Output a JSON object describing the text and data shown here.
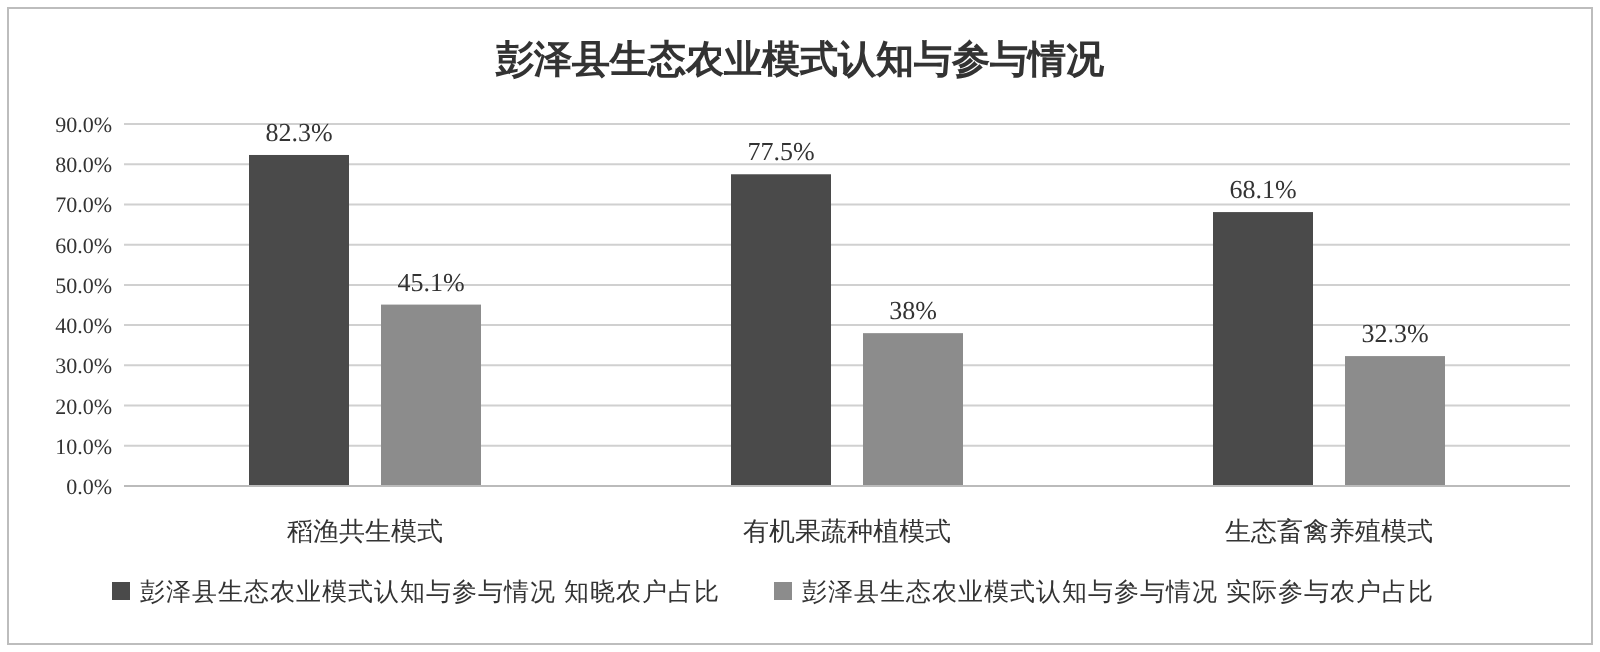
{
  "chart_data": {
    "type": "bar",
    "title": "彭泽县生态农业模式认知与参与情况",
    "categories": [
      "稻渔共生模式",
      "有机果蔬种植模式",
      "生态畜禽养殖模式"
    ],
    "series": [
      {
        "name": "彭泽县生态农业模式认知与参与情况 知晓农户占比",
        "color": "#4a4a4a",
        "values": [
          82.3,
          77.5,
          68.1
        ],
        "value_labels": [
          "82.3%",
          "77.5%",
          "68.1%"
        ]
      },
      {
        "name": "彭泽县生态农业模式认知与参与情况 实际参与农户占比",
        "color": "#8c8c8c",
        "values": [
          45.1,
          38,
          32.3
        ],
        "value_labels": [
          "45.1%",
          "38%",
          "32.3%"
        ]
      }
    ],
    "ylim": [
      0,
      90
    ],
    "yticks": [
      {
        "value": 0,
        "label": "0.0%"
      },
      {
        "value": 10,
        "label": "10.0%"
      },
      {
        "value": 20,
        "label": "20.0%"
      },
      {
        "value": 30,
        "label": "30.0%"
      },
      {
        "value": 40,
        "label": "40.0%"
      },
      {
        "value": 50,
        "label": "50.0%"
      },
      {
        "value": 60,
        "label": "60.0%"
      },
      {
        "value": 70,
        "label": "70.0%"
      },
      {
        "value": 80,
        "label": "80.0%"
      },
      {
        "value": 90,
        "label": "90.0%"
      }
    ],
    "grid": "y",
    "legend": "bottom"
  }
}
